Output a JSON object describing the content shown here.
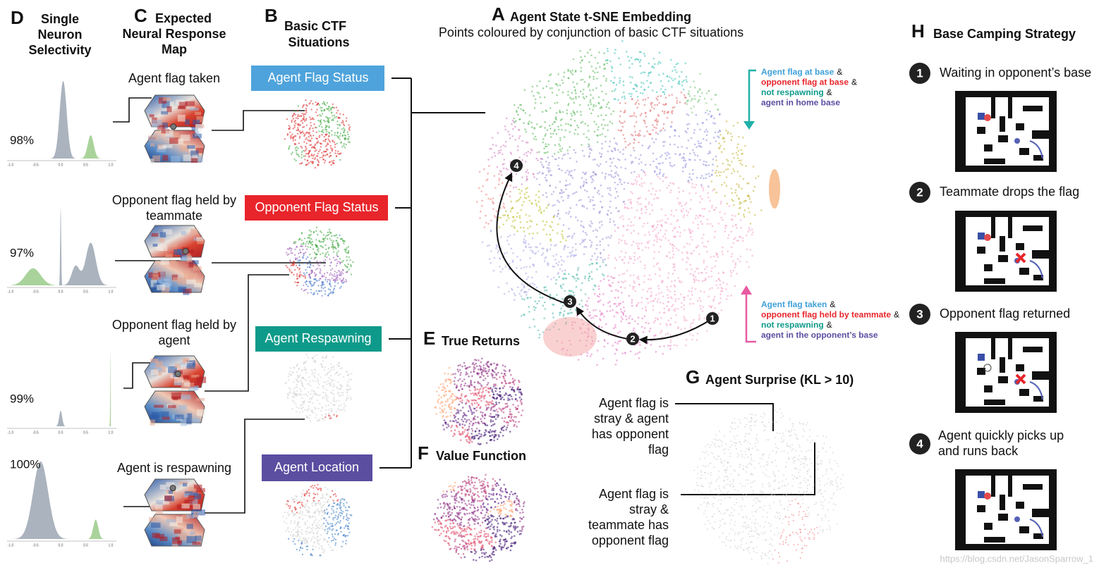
{
  "figure": {
    "panel_d": {
      "letter": "D",
      "title_lines": [
        "Single",
        "Neuron",
        "Selectivity"
      ],
      "percentages": [
        "98%",
        "97%",
        "99%",
        "100%"
      ],
      "axis_ticks": [
        "-1.0",
        "-0.5",
        "0.0",
        "0.5",
        "1.0"
      ]
    },
    "panel_c": {
      "letter": "C",
      "title_lines": [
        "Expected",
        "Neural Response",
        "Map"
      ],
      "labels": [
        [
          "Agent flag taken"
        ],
        [
          "Opponent flag held by",
          "teammate"
        ],
        [
          "Opponent flag held by",
          "agent"
        ],
        [
          "Agent is respawning"
        ]
      ]
    },
    "panel_b": {
      "letter": "B",
      "title_lines": [
        "Basic CTF",
        "Situations"
      ],
      "boxes": [
        "Agent Flag Status",
        "Opponent Flag Status",
        "Agent Respawning",
        "Agent Location"
      ]
    },
    "panel_a": {
      "letter": "A",
      "title": "Agent State t-SNE Embedding",
      "subtitle": "Points coloured by conjunction of basic CTF situations",
      "markers": [
        "1",
        "2",
        "3",
        "4"
      ],
      "ampersand": "&",
      "legend_top": [
        "Agent flag at base",
        "opponent flag at base",
        "not respawning",
        "agent in home base"
      ],
      "legend_bottom": [
        "Agent flag taken",
        "opponent flag held by teammate",
        "not respawning",
        "agent in the opponent’s base"
      ]
    },
    "panel_e": {
      "letter": "E",
      "title": "True Returns"
    },
    "panel_f": {
      "letter": "F",
      "title": "Value Function"
    },
    "panel_g": {
      "letter": "G",
      "title": "Agent Surprise (KL > 10)",
      "annotations": [
        [
          "Agent flag is",
          "stray & agent",
          "has opponent",
          "flag"
        ],
        [
          "Agent flag is",
          "stray &",
          "teammate has",
          "opponent flag"
        ]
      ]
    },
    "panel_h": {
      "letter": "H",
      "title": "Base Camping Strategy",
      "steps": [
        {
          "number": "1",
          "lines": [
            "Waiting in opponent’s base"
          ]
        },
        {
          "number": "2",
          "lines": [
            "Teammate drops the flag"
          ]
        },
        {
          "number": "3",
          "lines": [
            "Opponent flag returned"
          ]
        },
        {
          "number": "4",
          "lines": [
            "Agent quickly picks up",
            "and runs back"
          ]
        }
      ]
    },
    "watermark": "https://blog.csdn.net/JasonSparrow_1"
  }
}
